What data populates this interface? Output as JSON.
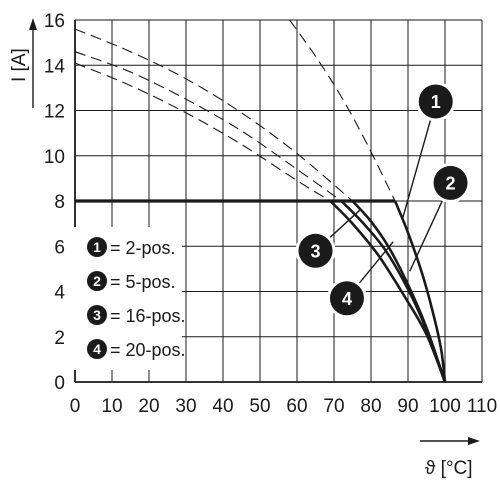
{
  "chart_data": {
    "type": "line",
    "xlabel": "ϑ [°C]",
    "ylabel": "I [A]",
    "xlim": [
      0,
      110
    ],
    "ylim": [
      0,
      16
    ],
    "xticks": [
      "0",
      "10",
      "20",
      "30",
      "40",
      "50",
      "60",
      "70",
      "80",
      "90",
      "100",
      "110"
    ],
    "yticks": [
      "0",
      "2",
      "4",
      "6",
      "8",
      "10",
      "12",
      "14",
      "16"
    ],
    "grid": true,
    "legend_position": "left",
    "legend": [
      {
        "marker": "1",
        "text": "= 2-pos."
      },
      {
        "marker": "2",
        "text": "= 5-pos."
      },
      {
        "marker": "3",
        "text": "= 16-pos."
      },
      {
        "marker": "4",
        "text": "= 20-pos."
      }
    ],
    "rated_current": {
      "value": 8,
      "x": [
        0,
        86.5
      ]
    },
    "series": [
      {
        "marker": "1",
        "derating": {
          "x": [
            86.5,
            90,
            94,
            97,
            99,
            100
          ],
          "y": [
            8,
            6.6,
            4.7,
            2.9,
            1.4,
            0
          ]
        },
        "dashed_extension": {
          "x": [
            58,
            65,
            72,
            79,
            86.5
          ],
          "y": [
            16,
            14.4,
            12.6,
            10.5,
            8
          ]
        }
      },
      {
        "marker": "2",
        "derating": {
          "x": [
            75,
            80,
            85,
            90,
            95,
            100
          ],
          "y": [
            8,
            7.1,
            5.9,
            4.3,
            2.4,
            0
          ]
        },
        "dashed_extension": {
          "x": [
            0,
            15,
            30,
            45,
            60,
            75
          ],
          "y": [
            15.6,
            14.6,
            13.4,
            11.9,
            10.1,
            8
          ]
        }
      },
      {
        "marker": "3",
        "derating": {
          "x": [
            72,
            78,
            84,
            90,
            95,
            100
          ],
          "y": [
            8,
            7.0,
            5.8,
            4.1,
            2.3,
            0
          ]
        },
        "dashed_extension": {
          "x": [
            0,
            15,
            30,
            45,
            60,
            72
          ],
          "y": [
            14.6,
            13.7,
            12.5,
            11.1,
            9.4,
            8
          ]
        }
      },
      {
        "marker": "4",
        "derating": {
          "x": [
            69,
            75,
            82,
            89,
            95,
            100
          ],
          "y": [
            8,
            7.0,
            5.6,
            3.8,
            2.1,
            0
          ]
        },
        "dashed_extension": {
          "x": [
            0,
            15,
            30,
            45,
            60,
            69
          ],
          "y": [
            14.1,
            13.1,
            11.9,
            10.5,
            8.9,
            8
          ]
        }
      }
    ],
    "curve_labels": [
      {
        "marker": "1",
        "at": [
          97.5,
          12.4
        ],
        "leader_to": [
          88.5,
          7.2
        ]
      },
      {
        "marker": "2",
        "at": [
          101.5,
          8.8
        ],
        "leader_to": [
          90.5,
          4.9
        ]
      },
      {
        "marker": "3",
        "at": [
          65,
          5.8
        ],
        "leader_to": [
          77,
          7.6
        ]
      },
      {
        "marker": "4",
        "at": [
          73.5,
          3.7
        ],
        "leader_to": [
          86,
          6.2
        ]
      }
    ]
  }
}
